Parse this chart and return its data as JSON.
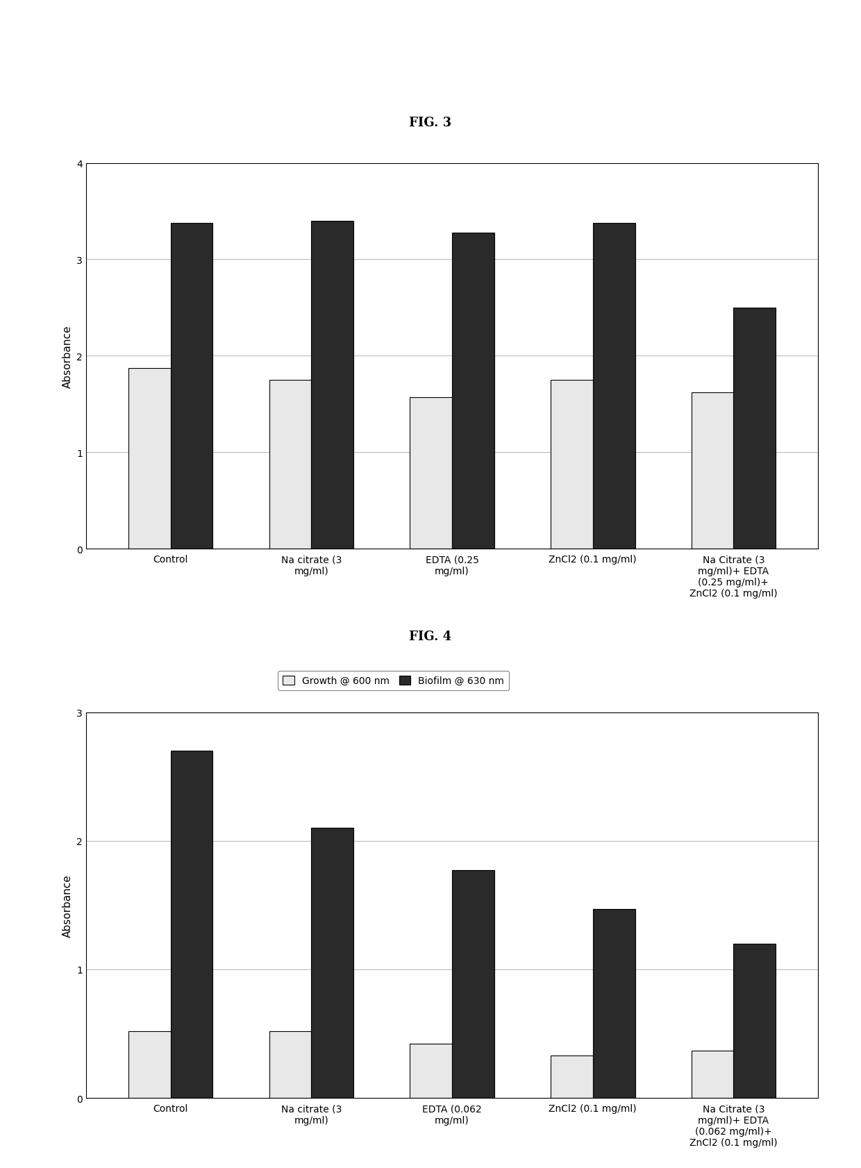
{
  "fig3": {
    "title": "FIG. 3",
    "categories": [
      "Control",
      "Na citrate (3\nmg/ml)",
      "EDTA (0.25\nmg/ml)",
      "ZnCl2 (0.1 mg/ml)",
      "Na Citrate (3\nmg/ml)+ EDTA\n(0.25 mg/ml)+\nZnCl2 (0.1 mg/ml)"
    ],
    "growth": [
      1.87,
      1.75,
      1.57,
      1.75,
      1.62
    ],
    "biofilm": [
      3.38,
      3.4,
      3.28,
      3.38,
      2.5
    ],
    "ylim": [
      0,
      4
    ],
    "yticks": [
      0,
      1,
      2,
      3,
      4
    ],
    "ylabel": "Absorbance"
  },
  "fig4": {
    "title": "FIG. 4",
    "categories": [
      "Control",
      "Na citrate (3\nmg/ml)",
      "EDTA (0.062\nmg/ml)",
      "ZnCl2 (0.1 mg/ml)",
      "Na Citrate (3\nmg/ml)+ EDTA\n(0.062 mg/ml)+\nZnCl2 (0.1 mg/ml)"
    ],
    "growth": [
      0.52,
      0.52,
      0.42,
      0.33,
      0.37
    ],
    "biofilm": [
      2.7,
      2.1,
      1.77,
      1.47,
      1.2
    ],
    "ylim": [
      0,
      3
    ],
    "yticks": [
      0,
      1,
      2,
      3
    ],
    "ylabel": "Absorbance"
  },
  "legend_growth": "Growth @ 600 nm",
  "legend_biofilm": "Biofilm @ 630 nm",
  "bar_color_growth": "#e8e8e8",
  "bar_color_biofilm": "#2a2a2a",
  "bar_edgecolor": "#000000",
  "background_color": "#ffffff",
  "title_fontsize": 13,
  "axis_fontsize": 11,
  "tick_fontsize": 10,
  "legend_fontsize": 10,
  "bar_width": 0.3
}
